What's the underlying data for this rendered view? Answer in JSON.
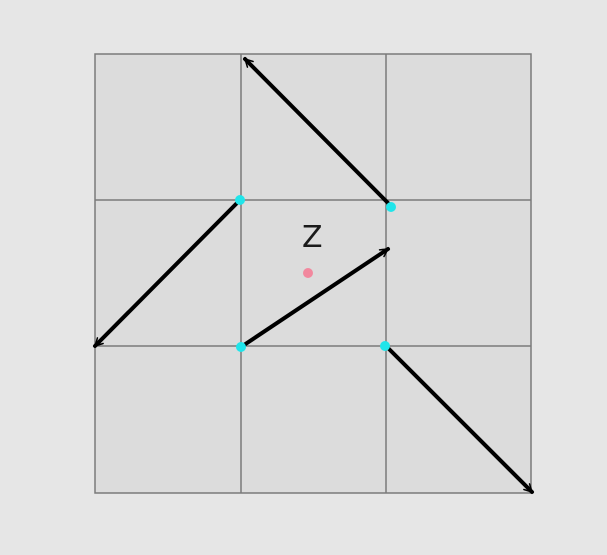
{
  "center_point": {
    "label": "Z",
    "color": "#f2889e"
  },
  "grid": {
    "rows": 3,
    "cols": 3,
    "cell_fill": "#dcdcdc",
    "line_color": "#7a7a7a"
  },
  "vertex_color": "#20e5ea",
  "arrow_color": "#000000"
}
